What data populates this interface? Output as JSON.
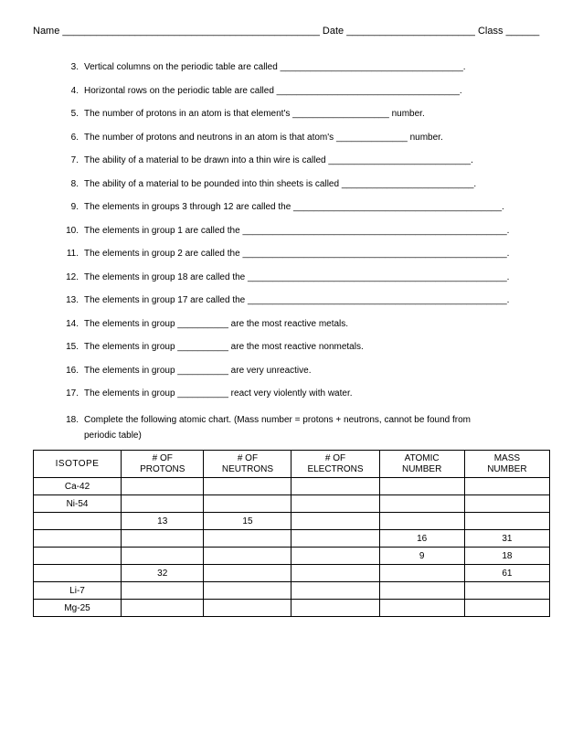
{
  "header": {
    "name_label": "Name",
    "name_blank": "______________________________________________",
    "date_label": "Date",
    "date_blank": "_______________________",
    "class_label": "Class",
    "class_blank": "______"
  },
  "questions": [
    {
      "n": "3.",
      "t": "Vertical columns on the periodic table are called ____________________________________."
    },
    {
      "n": "4.",
      "t": "Horizontal rows on the periodic table are called ____________________________________."
    },
    {
      "n": "5.",
      "t": "The number of protons in an atom is that element's ___________________ number."
    },
    {
      "n": "6.",
      "t": "The number of protons and neutrons in an atom is that atom's ______________ number."
    },
    {
      "n": "7.",
      "t": "The ability of a material to be drawn into a thin wire is called ____________________________."
    },
    {
      "n": "8.",
      "t": "The ability of a material to be pounded into thin sheets is called __________________________."
    },
    {
      "n": "9.",
      "t": "The elements in groups 3 through 12 are called the _________________________________________."
    },
    {
      "n": "10.",
      "t": "The elements in group 1 are called the ____________________________________________________."
    },
    {
      "n": "11.",
      "t": "The elements in group 2 are called the ____________________________________________________."
    },
    {
      "n": "12.",
      "t": "The elements in group 18 are called the ___________________________________________________."
    },
    {
      "n": "13.",
      "t": "The elements in group 17 are called the ___________________________________________________."
    },
    {
      "n": "14.",
      "t": "The elements in group __________ are the most reactive metals."
    },
    {
      "n": "15.",
      "t": "The elements in group __________ are the most reactive nonmetals."
    },
    {
      "n": "16.",
      "t": "The elements in group __________ are very unreactive."
    },
    {
      "n": "17.",
      "t": "The elements in group __________ react very violently with water."
    }
  ],
  "q18": {
    "n": "18.",
    "t": "Complete the following atomic chart. (Mass number = protons + neutrons, cannot be found from",
    "sub": "periodic table)"
  },
  "table": {
    "columns": [
      "ISOTOPE",
      "# OF PROTONS",
      "# OF NEUTRONS",
      "# OF ELECTRONS",
      "ATOMIC NUMBER",
      "MASS NUMBER"
    ],
    "col_widths": [
      "17%",
      "16%",
      "17%",
      "17%",
      "16.5%",
      "16.5%"
    ],
    "rows": [
      [
        "Ca-42",
        "",
        "",
        "",
        "",
        ""
      ],
      [
        "Ni-54",
        "",
        "",
        "",
        "",
        ""
      ],
      [
        "",
        "13",
        "15",
        "",
        "",
        ""
      ],
      [
        "",
        "",
        "",
        "",
        "16",
        "31"
      ],
      [
        "",
        "",
        "",
        "",
        "9",
        "18"
      ],
      [
        "",
        "32",
        "",
        "",
        "",
        "61"
      ],
      [
        "Li-7",
        "",
        "",
        "",
        "",
        ""
      ],
      [
        "Mg-25",
        "",
        "",
        "",
        "",
        ""
      ]
    ]
  }
}
